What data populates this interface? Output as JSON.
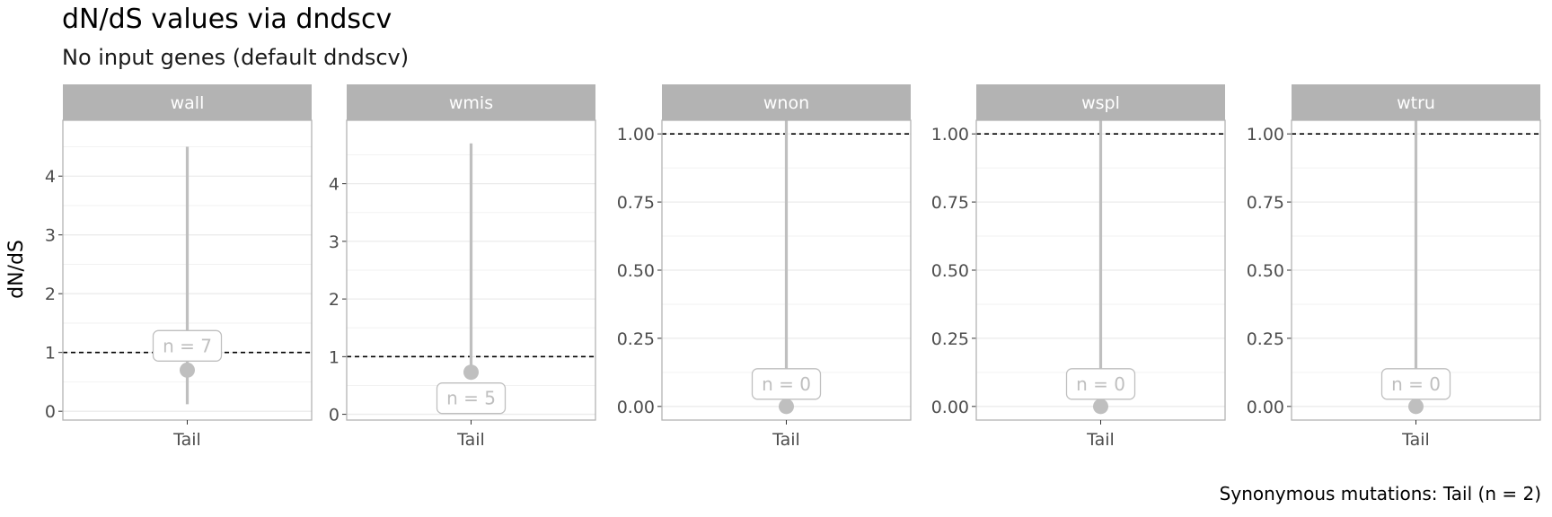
{
  "title": "dN/dS values via dndscv",
  "subtitle": "No input genes (default dndscv)",
  "caption": "Synonymous mutations: Tail (n = 2)",
  "chart_data": {
    "type": "pointrange",
    "ylabel": "dN/dS",
    "reference_line": 1,
    "colors": {
      "strip": "#b3b3b3",
      "point": "#bfbfbf",
      "grid": "#ebebeb",
      "border": "#b3b3b3"
    },
    "panels": [
      {
        "name": "wall",
        "category": "Tail",
        "value": 0.7,
        "low": 0.12,
        "high": 4.5,
        "n_label": "n = 7",
        "ylim": [
          -0.15,
          4.95
        ],
        "ticks": [
          0,
          1,
          2,
          3,
          4
        ],
        "tick_labels": [
          "0",
          "1",
          "2",
          "3",
          "4"
        ]
      },
      {
        "name": "wmis",
        "category": "Tail",
        "value": 0.73,
        "low": 0.73,
        "high": 4.7,
        "n_label": "n = 5",
        "ylim": [
          -0.1,
          5.1
        ],
        "ticks": [
          0,
          1,
          2,
          3,
          4
        ],
        "tick_labels": [
          "0",
          "1",
          "2",
          "3",
          "4"
        ]
      },
      {
        "name": "wnon",
        "category": "Tail",
        "value": 0.0,
        "low": 0.0,
        "high": 1.05,
        "n_label": "n = 0",
        "ylim": [
          -0.05,
          1.05
        ],
        "ticks": [
          0,
          0.25,
          0.5,
          0.75,
          1.0
        ],
        "tick_labels": [
          "0.00",
          "0.25",
          "0.50",
          "0.75",
          "1.00"
        ]
      },
      {
        "name": "wspl",
        "category": "Tail",
        "value": 0.0,
        "low": 0.0,
        "high": 1.05,
        "n_label": "n = 0",
        "ylim": [
          -0.05,
          1.05
        ],
        "ticks": [
          0,
          0.25,
          0.5,
          0.75,
          1.0
        ],
        "tick_labels": [
          "0.00",
          "0.25",
          "0.50",
          "0.75",
          "1.00"
        ]
      },
      {
        "name": "wtru",
        "category": "Tail",
        "value": 0.0,
        "low": 0.0,
        "high": 1.05,
        "n_label": "n = 0",
        "ylim": [
          -0.05,
          1.05
        ],
        "ticks": [
          0,
          0.25,
          0.5,
          0.75,
          1.0
        ],
        "tick_labels": [
          "0.00",
          "0.25",
          "0.50",
          "0.75",
          "1.00"
        ]
      }
    ]
  }
}
